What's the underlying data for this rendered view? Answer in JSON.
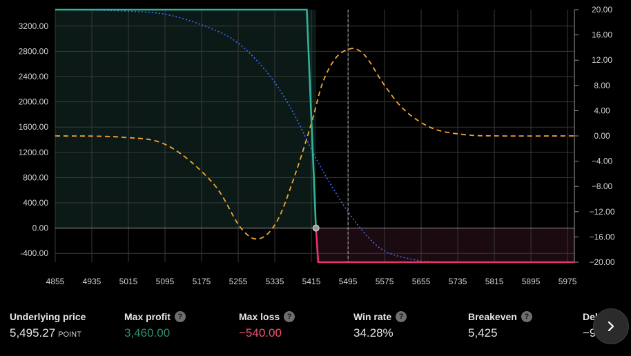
{
  "chart_data": {
    "type": "line",
    "x_ticks": [
      4855,
      4935,
      5015,
      5095,
      5175,
      5255,
      5335,
      5415,
      5495,
      5575,
      5655,
      5735,
      5815,
      5895,
      5975
    ],
    "x_range": [
      4855,
      5990
    ],
    "y_left_ticks": [
      "3200.00",
      "2800.00",
      "2400.00",
      "2000.00",
      "1600.00",
      "1200.00",
      "800.00",
      "400.00",
      "0.00",
      "-400.00"
    ],
    "y_left_range": [
      -540,
      3460
    ],
    "y_right_ticks": [
      "20.00",
      "16.00",
      "12.00",
      "8.00",
      "4.00",
      "0.00",
      "−4.00",
      "−8.00",
      "−12.00",
      "−16.00",
      "−20.00"
    ],
    "y_right_range": [
      -20,
      20
    ],
    "current_price": 5495.27,
    "breakeven": 5425,
    "payoff": {
      "x": [
        4855,
        5405,
        5425,
        5430,
        5990
      ],
      "y": [
        3460,
        3460,
        0,
        -540,
        -540
      ]
    },
    "delta_curve": {
      "x": [
        4855,
        5000,
        5100,
        5200,
        5260,
        5300,
        5340,
        5380,
        5415,
        5440,
        5470,
        5500,
        5520,
        5540,
        5575,
        5620,
        5680,
        5750,
        5820,
        5990
      ],
      "y": [
        0,
        -0.2,
        -1.5,
        -7.5,
        -14.5,
        -16.3,
        -13.5,
        -6,
        2,
        8.5,
        12.5,
        13.8,
        13.5,
        12,
        8,
        4,
        1.2,
        0.2,
        0,
        0
      ]
    },
    "prob_curve": {
      "x": [
        4855,
        5000,
        5100,
        5200,
        5260,
        5320,
        5370,
        5415,
        5450,
        5495,
        5540,
        5580,
        5640,
        5700,
        5990
      ],
      "y": [
        3460,
        3440,
        3380,
        3150,
        2900,
        2450,
        1900,
        1250,
        780,
        260,
        -150,
        -380,
        -500,
        -535,
        -540
      ]
    },
    "colors": {
      "profit_line": "#2fb39a",
      "loss_line": "#e8336a",
      "delta_line": "#f5a533",
      "prob_line": "#3d6bff",
      "profit_fill": "#0b1a17",
      "loss_fill": "#1c0a11"
    }
  },
  "stats": {
    "underlying": {
      "label": "Underlying price",
      "value": "5,495.27",
      "unit": "POINT"
    },
    "max_profit": {
      "label": "Max profit",
      "value": "3,460.00",
      "icon": "help-icon"
    },
    "max_loss": {
      "label": "Max loss",
      "value": "−540.00",
      "icon": "help-icon"
    },
    "win_rate": {
      "label": "Win rate",
      "value": "34.28%",
      "icon": "help-icon"
    },
    "breakeven": {
      "label": "Breakeven",
      "value": "5,425",
      "icon": "help-icon"
    },
    "delta": {
      "label": "Del",
      "value": "−9"
    }
  },
  "next_button": {
    "icon": "chevron-right-icon"
  }
}
